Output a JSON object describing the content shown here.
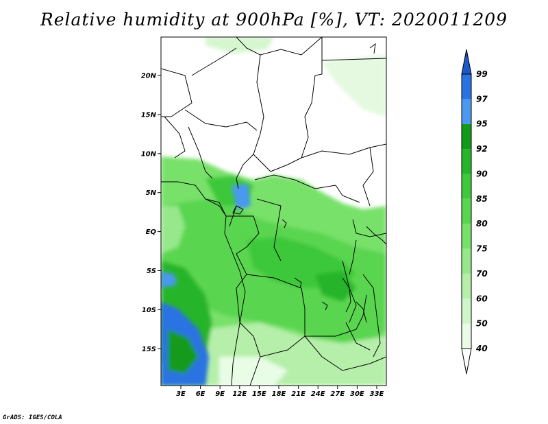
{
  "title": "Relative humidity at 900hPa [%], VT: 2020011209",
  "credit": "GrADS: IGES/COLA",
  "map": {
    "lat_labels": [
      "20N",
      "15N",
      "10N",
      "5N",
      "EQ",
      "5S",
      "10S",
      "15S"
    ],
    "lon_labels": [
      "3E",
      "6E",
      "9E",
      "12E",
      "15E",
      "18E",
      "21E",
      "24E",
      "27E",
      "30E",
      "33E"
    ]
  },
  "colorbar": {
    "levels": [
      "40",
      "50",
      "60",
      "70",
      "75",
      "80",
      "85",
      "90",
      "92",
      "95",
      "97",
      "99"
    ],
    "colors": [
      "#ffffff",
      "#e9fce6",
      "#d0f5c9",
      "#b5efa9",
      "#96e88a",
      "#78e16a",
      "#5ad54f",
      "#3ec83a",
      "#26b52a",
      "#129a1a",
      "#4a99ee",
      "#2b73e2",
      "#1c58c7"
    ]
  }
}
